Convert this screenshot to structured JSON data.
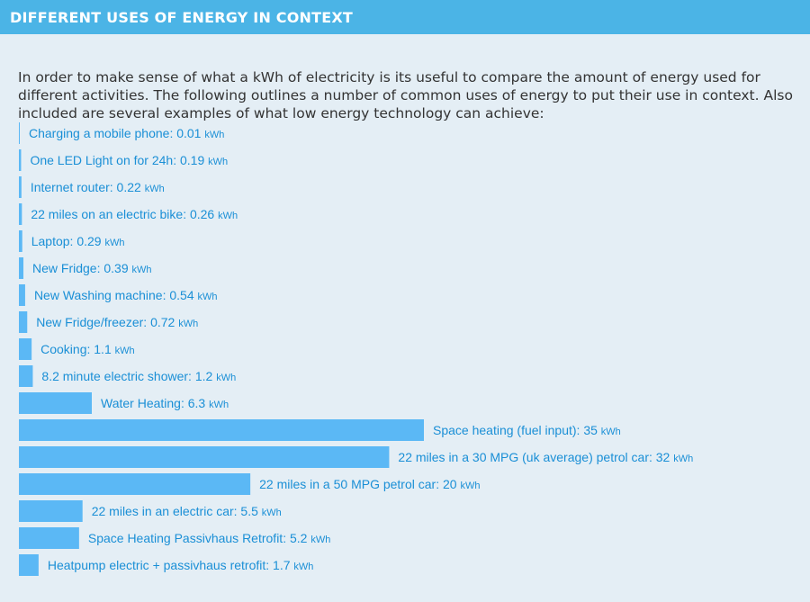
{
  "header": {
    "title": "DIFFERENT USES OF ENERGY IN CONTEXT"
  },
  "intro": {
    "text": "In order to make sense of what a kWh of electricity is its useful to compare the amount of energy used for different activities. The following outlines a number of common uses of energy to put their use in context. Also included are several examples of what low energy technology can achieve:"
  },
  "colors": {
    "header": "#4bb4e6",
    "bar": "#5bb8f5",
    "label": "#1a8fd6",
    "background": "#e4eef5"
  },
  "chart_data": {
    "type": "bar",
    "orientation": "horizontal",
    "unit": "kWh",
    "items": [
      {
        "label": "Charging a mobile phone: 0.01",
        "value": 0.01
      },
      {
        "label": "One LED Light on for 24h: 0.19",
        "value": 0.19
      },
      {
        "label": "Internet router: 0.22",
        "value": 0.22
      },
      {
        "label": "22 miles on an electric bike: 0.26",
        "value": 0.26
      },
      {
        "label": "Laptop: 0.29",
        "value": 0.29
      },
      {
        "label": "New Fridge: 0.39",
        "value": 0.39
      },
      {
        "label": "New Washing machine: 0.54",
        "value": 0.54
      },
      {
        "label": "New Fridge/freezer: 0.72",
        "value": 0.72
      },
      {
        "label": "Cooking: 1.1",
        "value": 1.1
      },
      {
        "label": "8.2 minute electric shower: 1.2",
        "value": 1.2
      },
      {
        "label": "Water Heating: 6.3",
        "value": 6.3
      },
      {
        "label": "Space heating (fuel input): 35",
        "value": 35
      },
      {
        "label": "22 miles in a 30 MPG (uk average) petrol car: 32",
        "value": 32
      },
      {
        "label": "22 miles in a 50 MPG petrol car: 20",
        "value": 20
      },
      {
        "label": "22 miles in an electric car: 5.5",
        "value": 5.5
      },
      {
        "label": "Space Heating Passivhaus Retrofit: 5.2",
        "value": 5.2
      },
      {
        "label": "Heatpump electric + passivhaus retrofit: 1.7",
        "value": 1.7
      }
    ]
  }
}
